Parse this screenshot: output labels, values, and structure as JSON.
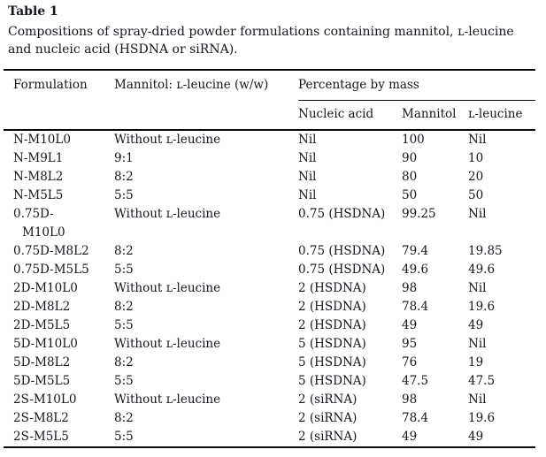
{
  "colors": {
    "text": "#16161e",
    "rule": "#0a0a0a",
    "background": "#ffffff"
  },
  "title": "Table 1",
  "caption": "Compositions of spray-dried powder formulations containing mannitol, ʟ-leucine and nucleic acid (HSDNA or siRNA).",
  "table": {
    "columns": {
      "formulation": "Formulation",
      "ratio": "Mannitol: ʟ-leucine (w/w)",
      "group": "Percentage by mass",
      "sub": [
        "Nucleic acid",
        "Mannitol",
        "ʟ-leucine"
      ]
    },
    "rows": [
      [
        "N-M10L0",
        "Without ʟ-leucine",
        "Nil",
        "100",
        "Nil"
      ],
      [
        "N-M9L1",
        "9:1",
        "Nil",
        "90",
        "10"
      ],
      [
        "N-M8L2",
        "8:2",
        "Nil",
        "80",
        "20"
      ],
      [
        "N-M5L5",
        "5:5",
        "Nil",
        "50",
        "50"
      ],
      [
        "0.75D-\nM10L0",
        "Without ʟ-leucine",
        "0.75 (HSDNA)",
        "99.25",
        "Nil"
      ],
      [
        "0.75D-M8L2",
        "8:2",
        "0.75 (HSDNA)",
        "79.4",
        "19.85"
      ],
      [
        "0.75D-M5L5",
        "5:5",
        "0.75 (HSDNA)",
        "49.6",
        "49.6"
      ],
      [
        "2D-M10L0",
        "Without ʟ-leucine",
        "2 (HSDNA)",
        "98",
        "Nil"
      ],
      [
        "2D-M8L2",
        "8:2",
        "2 (HSDNA)",
        "78.4",
        "19.6"
      ],
      [
        "2D-M5L5",
        "5:5",
        "2 (HSDNA)",
        "49",
        "49"
      ],
      [
        "5D-M10L0",
        "Without ʟ-leucine",
        "5 (HSDNA)",
        "95",
        "Nil"
      ],
      [
        "5D-M8L2",
        "8:2",
        "5 (HSDNA)",
        "76",
        "19"
      ],
      [
        "5D-M5L5",
        "5:5",
        "5 (HSDNA)",
        "47.5",
        "47.5"
      ],
      [
        "2S-M10L0",
        "Without ʟ-leucine",
        "2 (siRNA)",
        "98",
        "Nil"
      ],
      [
        "2S-M8L2",
        "8:2",
        "2 (siRNA)",
        "78.4",
        "19.6"
      ],
      [
        "2S-M5L5",
        "5:5",
        "2 (siRNA)",
        "49",
        "49"
      ]
    ]
  }
}
